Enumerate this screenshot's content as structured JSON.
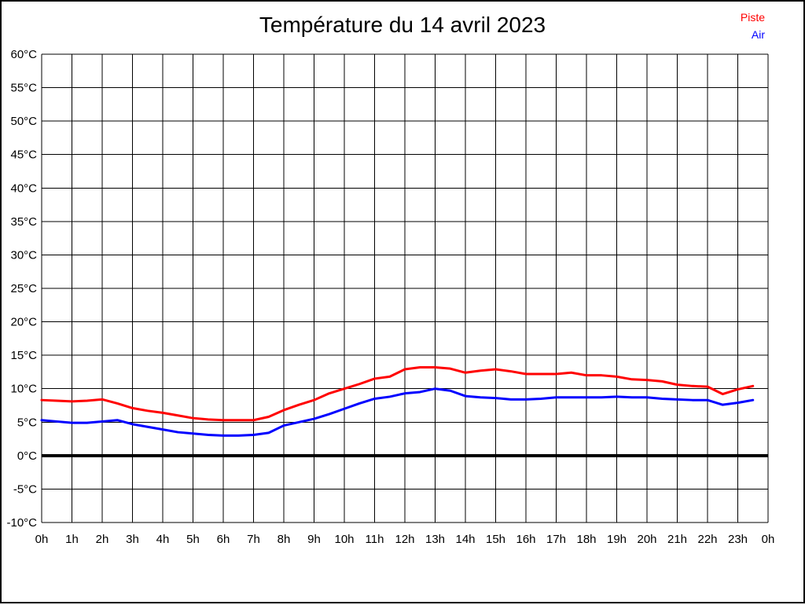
{
  "page": {
    "background": "#ffffff",
    "border_color": "#000000"
  },
  "header": {
    "title": "Température du 14 avril 2023"
  },
  "legend": {
    "position": "top-right",
    "items": [
      {
        "label": "Piste",
        "color": "#ff0000"
      },
      {
        "label": "Air",
        "color": "#0000ff"
      }
    ]
  },
  "chart_data": {
    "type": "line",
    "title": "Température du 14 avril 2023",
    "xlabel": "",
    "ylabel": "",
    "x_unit": "hour-of-day",
    "xlim": [
      0,
      24
    ],
    "ylim": [
      -10,
      60
    ],
    "grid": true,
    "legend_position": "top-right",
    "zero_line": {
      "value": 0,
      "color": "#000000",
      "width": 4
    },
    "x_ticks": [
      0,
      1,
      2,
      3,
      4,
      5,
      6,
      7,
      8,
      9,
      10,
      11,
      12,
      13,
      14,
      15,
      16,
      17,
      18,
      19,
      20,
      21,
      22,
      23,
      24
    ],
    "x_tick_labels": [
      "0h",
      "1h",
      "2h",
      "3h",
      "4h",
      "5h",
      "6h",
      "7h",
      "8h",
      "9h",
      "10h",
      "11h",
      "12h",
      "13h",
      "14h",
      "15h",
      "16h",
      "17h",
      "18h",
      "19h",
      "20h",
      "21h",
      "22h",
      "23h",
      "0h"
    ],
    "y_ticks": [
      60,
      55,
      50,
      45,
      40,
      35,
      30,
      25,
      20,
      15,
      10,
      5,
      0,
      -5,
      -10
    ],
    "y_tick_labels": [
      "60°C",
      "55°C",
      "50°C",
      "45°C",
      "40°C",
      "35°C",
      "30°C",
      "25°C",
      "20°C",
      "15°C",
      "10°C",
      "5°C",
      "0°C",
      "-5°C",
      "-10°C"
    ],
    "x": [
      0,
      0.5,
      1,
      1.5,
      2,
      2.5,
      3,
      3.5,
      4,
      4.5,
      5,
      5.5,
      6,
      6.5,
      7,
      7.5,
      8,
      8.5,
      9,
      9.5,
      10,
      10.5,
      11,
      11.5,
      12,
      12.5,
      13,
      13.5,
      14,
      14.5,
      15,
      15.5,
      16,
      16.5,
      17,
      17.5,
      18,
      18.5,
      19,
      19.5,
      20,
      20.5,
      21,
      21.5,
      22,
      22.5,
      23,
      23.5
    ],
    "series": [
      {
        "name": "Piste",
        "color": "#ff0000",
        "values": [
          8.3,
          8.2,
          8.1,
          8.2,
          8.4,
          7.8,
          7.1,
          6.7,
          6.4,
          6.0,
          5.6,
          5.4,
          5.3,
          5.3,
          5.3,
          5.8,
          6.8,
          7.6,
          8.3,
          9.3,
          10.0,
          10.7,
          11.5,
          11.8,
          12.9,
          13.2,
          13.2,
          13.0,
          12.4,
          12.7,
          12.9,
          12.6,
          12.2,
          12.2,
          12.2,
          12.4,
          12.0,
          12.0,
          11.8,
          11.4,
          11.3,
          11.1,
          10.6,
          10.4,
          10.3,
          9.2,
          9.9,
          10.4
        ]
      },
      {
        "name": "Air",
        "color": "#0000ff",
        "values": [
          5.3,
          5.1,
          4.9,
          4.9,
          5.1,
          5.3,
          4.7,
          4.3,
          3.9,
          3.5,
          3.3,
          3.1,
          3.0,
          3.0,
          3.1,
          3.4,
          4.5,
          5.0,
          5.5,
          6.2,
          7.0,
          7.8,
          8.5,
          8.8,
          9.3,
          9.5,
          10.0,
          9.7,
          8.9,
          8.7,
          8.6,
          8.4,
          8.4,
          8.5,
          8.7,
          8.7,
          8.7,
          8.7,
          8.8,
          8.7,
          8.7,
          8.5,
          8.4,
          8.3,
          8.3,
          7.6,
          7.9,
          8.3
        ]
      }
    ]
  }
}
